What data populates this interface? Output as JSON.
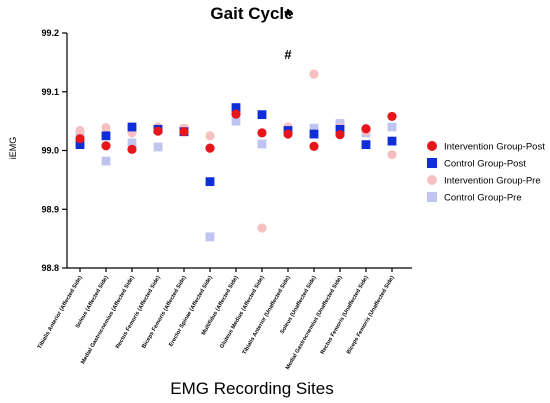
{
  "chart_data": {
    "type": "scatter",
    "title": "Gait Cycle",
    "xlabel": "EMG Recording Sites",
    "ylabel": "iEMG",
    "ylim": [
      98.8,
      99.2
    ],
    "yticks": [
      "98.8",
      "98.9",
      "99.0",
      "99.1",
      "99.2"
    ],
    "categories": [
      "Tibialis Anterior (Affected Side)",
      "Soleus (Affected Side)",
      "Medial Gastrocnemius (Affected Side)",
      "Rectus Femoris (Affected Side)",
      "Biceps Femoris (Affected Side)",
      "Erector Spinae (Affected Side)",
      "Multifidus (Affected Side)",
      "Gluteus Medius (Affected Side)",
      "Tibialis Anterior (Unaffected Side)",
      "Soleus (Unaffected Side)",
      "Medial Gastrocnemius (Unaffected Side)",
      "Rectus Femoris (Unaffected Side)",
      "Biceps Femoris (Unaffected Side)"
    ],
    "series": [
      {
        "name": "Intervention Group-Post",
        "marker": "circle",
        "color": "#e8151b",
        "values": [
          99.02,
          99.008,
          99.002,
          99.033,
          99.032,
          99.004,
          99.062,
          99.03,
          99.028,
          99.007,
          99.027,
          99.037,
          99.058
        ]
      },
      {
        "name": "Control Group-Post",
        "marker": "square",
        "color": "#0f2ed9",
        "values": [
          99.01,
          99.025,
          99.04,
          99.036,
          99.032,
          98.947,
          99.073,
          99.061,
          99.034,
          99.028,
          99.036,
          99.01,
          99.016
        ]
      },
      {
        "name": "Intervention Group-Pre",
        "marker": "circle",
        "color": "#f6c0c2",
        "values": [
          99.034,
          99.039,
          99.03,
          99.04,
          99.038,
          99.025,
          99.067,
          98.868,
          99.04,
          99.13,
          99.04,
          99.033,
          98.993
        ]
      },
      {
        "name": "Control Group-Pre",
        "marker": "square",
        "color": "#c0c4f0",
        "values": [
          99.028,
          98.982,
          99.013,
          99.006,
          99.036,
          98.853,
          99.05,
          99.011,
          99.034,
          99.038,
          99.046,
          99.03,
          99.04
        ]
      }
    ],
    "annotations": [
      {
        "text": "*",
        "category_index": 8
      },
      {
        "text": "#",
        "category_index": 8
      }
    ],
    "legend_position": "right",
    "grid": false
  }
}
